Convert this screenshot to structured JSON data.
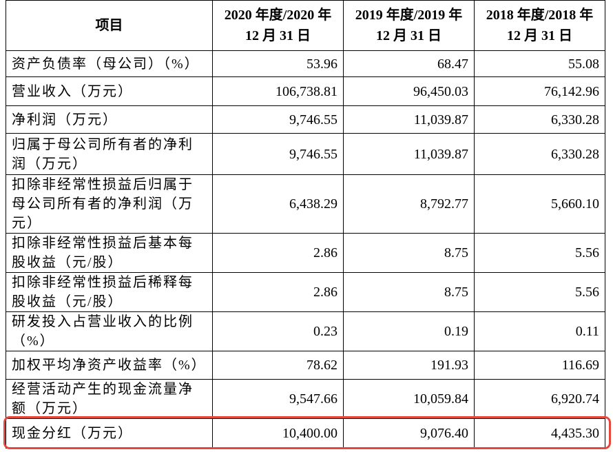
{
  "table": {
    "header": [
      "项目",
      [
        "2020 年度/2020 年",
        "12 月 31 日"
      ],
      [
        "2019 年度/2019 年",
        "12 月 31 日"
      ],
      [
        "2018 年度/2018 年",
        "12 月 31 日"
      ]
    ],
    "rows": [
      [
        "资产负债率（母公司）（%）",
        "53.96",
        "68.47",
        "55.08"
      ],
      [
        "营业收入（万元）",
        "106,738.81",
        "96,450.03",
        "76,142.96"
      ],
      [
        "净利润（万元）",
        "9,746.55",
        "11,039.87",
        "6,330.28"
      ],
      [
        "归属于母公司所有者的净利润（万元）",
        "9,746.55",
        "11,039.87",
        "6,330.28"
      ],
      [
        "扣除非经常性损益后归属于母公司所有者的净利润（万元）",
        "6,438.29",
        "8,792.77",
        "5,660.10"
      ],
      [
        "扣除非经常性损益后基本每股收益（元/股）",
        "2.86",
        "8.75",
        "5.56"
      ],
      [
        "扣除非经常性损益后稀释每股收益（元/股）",
        "2.86",
        "8.75",
        "5.56"
      ],
      [
        "研发投入占营业收入的比例（%）",
        "0.23",
        "0.19",
        "0.11"
      ],
      [
        "加权平均净资产收益率（%）",
        "78.62",
        "191.93",
        "116.69"
      ],
      [
        "经营活动产生的现金流量净额（万元）",
        "9,547.66",
        "10,059.84",
        "6,920.74"
      ],
      [
        "现金分红（万元）",
        "10,400.00",
        "9,076.40",
        "4,435.30"
      ]
    ]
  }
}
